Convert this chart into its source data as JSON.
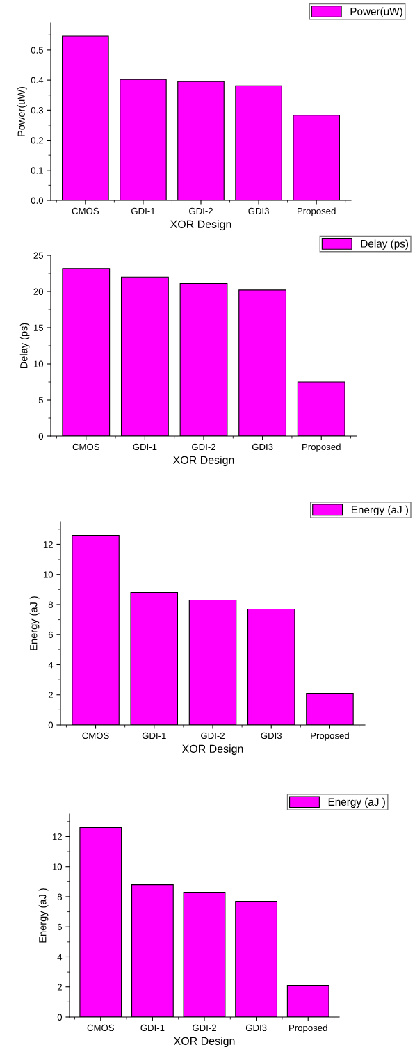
{
  "chart_data": [
    {
      "type": "bar",
      "xlabel": "XOR Design",
      "ylabel": "Power(uW)",
      "categories": [
        "CMOS",
        "GDI-1",
        "GDI-2",
        "GDI3",
        "Proposed"
      ],
      "series": [
        {
          "name": "Power(uW)",
          "color": "#ff00ff",
          "values": [
            0.546,
            0.402,
            0.395,
            0.381,
            0.283
          ]
        }
      ],
      "ylim": [
        0,
        0.59
      ],
      "yticks": [
        {
          "value": 0,
          "label": "0.0"
        },
        0.1,
        0.2,
        0.3,
        0.4,
        0.5
      ],
      "legend": "top right",
      "grid": false
    },
    {
      "type": "bar",
      "xlabel": "XOR Design",
      "ylabel": "Delay (ps)",
      "categories": [
        "CMOS",
        "GDI-1",
        "GDI-2",
        "GDI3",
        "Proposed"
      ],
      "series": [
        {
          "name": "Delay (ps)",
          "color": "#ff00ff",
          "values": [
            23.2,
            22.0,
            21.1,
            20.2,
            7.5
          ]
        }
      ],
      "ylim": [
        0,
        25
      ],
      "yticks": [
        0,
        5,
        10,
        15,
        20,
        25
      ],
      "legend": "top right",
      "grid": false
    },
    {
      "type": "bar",
      "xlabel": "XOR Design",
      "ylabel": "Energy (aJ )",
      "categories": [
        "CMOS",
        "GDI-1",
        "GDI-2",
        "GDI3",
        "Proposed"
      ],
      "series": [
        {
          "name": "Energy (aJ )",
          "color": "#ff00ff",
          "values": [
            12.6,
            8.8,
            8.3,
            7.7,
            2.1
          ]
        }
      ],
      "ylim": [
        0,
        13.5
      ],
      "yticks": [
        0,
        2,
        4,
        6,
        8,
        10,
        12
      ],
      "legend": "top right",
      "grid": false
    },
    {
      "type": "bar",
      "xlabel": "XOR Design",
      "ylabel": "Energy (aJ )",
      "categories": [
        "CMOS",
        "GDI-1",
        "GDI-2",
        "GDI3",
        "Proposed"
      ],
      "series": [
        {
          "name": "Energy (aJ )",
          "color": "#ff00ff",
          "values": [
            12.6,
            8.8,
            8.3,
            7.7,
            2.1
          ]
        }
      ],
      "ylim": [
        0,
        13.5
      ],
      "yticks": [
        0,
        2,
        4,
        6,
        8,
        10,
        12
      ],
      "legend": "top right",
      "grid": false
    }
  ]
}
